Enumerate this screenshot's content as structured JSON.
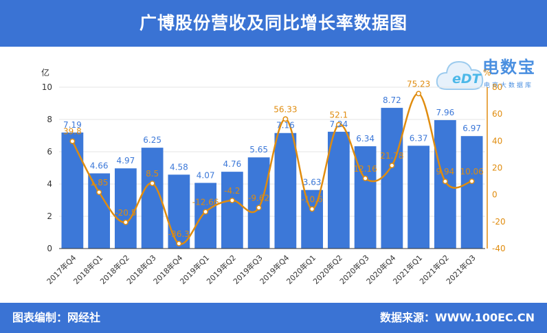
{
  "header": {
    "title": "广博股份营收及同比增长率数据图"
  },
  "footer": {
    "left": "图表编制：网经社",
    "right": "数据来源：WWW.100EC.CN"
  },
  "logo": {
    "main": "电数宝",
    "sub": "电商大数据库",
    "mark": "eDT"
  },
  "colors": {
    "bar": "#3c78d8",
    "line": "#e08c0e",
    "bar_label": "#3c78d8",
    "line_label": "#e08c0e",
    "header_bg": "#3a73d4"
  },
  "chart_data": {
    "type": "bar",
    "categories": [
      "2017年Q4",
      "2018年Q1",
      "2018年Q2",
      "2018年Q3",
      "2018年Q4",
      "2019年Q1",
      "2019年Q2",
      "2019年Q3",
      "2019年Q4",
      "2020年Q1",
      "2020年Q2",
      "2020年Q3",
      "2020年Q4",
      "2021年Q1",
      "2021年Q2",
      "2021年Q3"
    ],
    "series": [
      {
        "type": "bar",
        "axis": "left",
        "values": [
          7.19,
          4.66,
          4.97,
          6.25,
          4.58,
          4.07,
          4.76,
          5.65,
          7.16,
          3.63,
          7.24,
          6.34,
          8.72,
          6.37,
          7.96,
          6.97
        ]
      },
      {
        "type": "line",
        "axis": "right",
        "smooth": true,
        "values": [
          39.8,
          1.85,
          -20.5,
          8.5,
          -36.3,
          -12.66,
          -4.2,
          -9.62,
          56.33,
          -10.6,
          52.1,
          12.16,
          21.78,
          75.23,
          9.94,
          10.06
        ]
      }
    ],
    "y_left": {
      "unit": "亿",
      "min": 0,
      "max": 10,
      "ticks": [
        "0",
        "2",
        "4",
        "6",
        "8",
        "10"
      ]
    },
    "y_right": {
      "unit": "%",
      "min": -40,
      "max": 80,
      "ticks": [
        "-40",
        "-20",
        "0",
        "20",
        "40",
        "60",
        "80"
      ]
    },
    "grid": true,
    "legend": "none"
  }
}
